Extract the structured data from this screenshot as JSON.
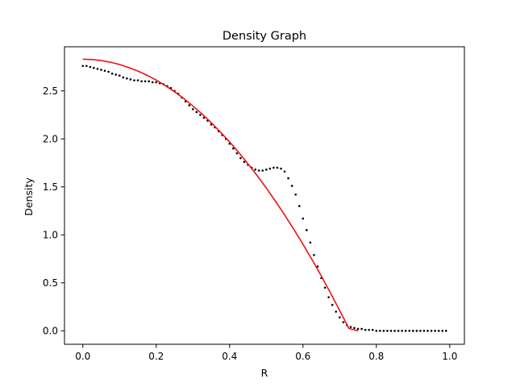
{
  "chart_data": {
    "type": "scatter",
    "title": "Density Graph",
    "xlabel": "R",
    "ylabel": "Density",
    "xlim": [
      -0.05,
      1.04
    ],
    "ylim": [
      -0.14,
      2.96
    ],
    "xticks": [
      0.0,
      0.2,
      0.4,
      0.6,
      0.8,
      1.0
    ],
    "xtick_labels": [
      "0.0",
      "0.2",
      "0.4",
      "0.6",
      "0.8",
      "1.0"
    ],
    "yticks": [
      0.0,
      0.5,
      1.0,
      1.5,
      2.0,
      2.5
    ],
    "ytick_labels": [
      "0.0",
      "0.5",
      "1.0",
      "1.5",
      "2.0",
      "2.5"
    ],
    "grid": false,
    "legend": "none",
    "series": [
      {
        "type": "scatter",
        "color": "#000000",
        "marker": "dot",
        "points": [
          [
            0.0,
            2.76
          ],
          [
            0.01,
            2.76
          ],
          [
            0.02,
            2.75
          ],
          [
            0.03,
            2.74
          ],
          [
            0.04,
            2.73
          ],
          [
            0.05,
            2.72
          ],
          [
            0.06,
            2.71
          ],
          [
            0.07,
            2.7
          ],
          [
            0.08,
            2.68
          ],
          [
            0.09,
            2.67
          ],
          [
            0.1,
            2.66
          ],
          [
            0.11,
            2.64
          ],
          [
            0.12,
            2.63
          ],
          [
            0.13,
            2.62
          ],
          [
            0.14,
            2.61
          ],
          [
            0.15,
            2.61
          ],
          [
            0.16,
            2.6
          ],
          [
            0.17,
            2.6
          ],
          [
            0.18,
            2.6
          ],
          [
            0.19,
            2.59
          ],
          [
            0.2,
            2.59
          ],
          [
            0.21,
            2.58
          ],
          [
            0.22,
            2.57
          ],
          [
            0.23,
            2.55
          ],
          [
            0.24,
            2.53
          ],
          [
            0.25,
            2.5
          ],
          [
            0.26,
            2.47
          ],
          [
            0.27,
            2.43
          ],
          [
            0.28,
            2.39
          ],
          [
            0.29,
            2.35
          ],
          [
            0.3,
            2.31
          ],
          [
            0.31,
            2.28
          ],
          [
            0.32,
            2.25
          ],
          [
            0.33,
            2.22
          ],
          [
            0.34,
            2.19
          ],
          [
            0.35,
            2.15
          ],
          [
            0.36,
            2.12
          ],
          [
            0.37,
            2.08
          ],
          [
            0.38,
            2.04
          ],
          [
            0.39,
            2.0
          ],
          [
            0.4,
            1.95
          ],
          [
            0.41,
            1.9
          ],
          [
            0.42,
            1.85
          ],
          [
            0.43,
            1.8
          ],
          [
            0.44,
            1.76
          ],
          [
            0.45,
            1.73
          ],
          [
            0.46,
            1.7
          ],
          [
            0.47,
            1.68
          ],
          [
            0.48,
            1.67
          ],
          [
            0.49,
            1.67
          ],
          [
            0.5,
            1.68
          ],
          [
            0.51,
            1.69
          ],
          [
            0.52,
            1.7
          ],
          [
            0.53,
            1.7
          ],
          [
            0.54,
            1.69
          ],
          [
            0.55,
            1.66
          ],
          [
            0.56,
            1.59
          ],
          [
            0.57,
            1.51
          ],
          [
            0.58,
            1.42
          ],
          [
            0.59,
            1.3
          ],
          [
            0.6,
            1.17
          ],
          [
            0.61,
            1.05
          ],
          [
            0.62,
            0.92
          ],
          [
            0.63,
            0.79
          ],
          [
            0.64,
            0.67
          ],
          [
            0.65,
            0.55
          ],
          [
            0.66,
            0.45
          ],
          [
            0.67,
            0.35
          ],
          [
            0.68,
            0.27
          ],
          [
            0.69,
            0.2
          ],
          [
            0.7,
            0.14
          ],
          [
            0.71,
            0.09
          ],
          [
            0.72,
            0.06
          ],
          [
            0.73,
            0.04
          ],
          [
            0.74,
            0.03
          ],
          [
            0.75,
            0.02
          ],
          [
            0.76,
            0.02
          ],
          [
            0.77,
            0.01
          ],
          [
            0.78,
            0.01
          ],
          [
            0.79,
            0.01
          ],
          [
            0.8,
            0.0
          ],
          [
            0.81,
            0.0
          ],
          [
            0.82,
            0.0
          ],
          [
            0.83,
            0.0
          ],
          [
            0.84,
            0.0
          ],
          [
            0.85,
            0.0
          ],
          [
            0.86,
            0.0
          ],
          [
            0.87,
            0.0
          ],
          [
            0.88,
            0.0
          ],
          [
            0.89,
            0.0
          ],
          [
            0.9,
            0.0
          ],
          [
            0.91,
            0.0
          ],
          [
            0.92,
            0.0
          ],
          [
            0.93,
            0.0
          ],
          [
            0.94,
            0.0
          ],
          [
            0.95,
            0.0
          ],
          [
            0.96,
            0.0
          ],
          [
            0.97,
            0.0
          ],
          [
            0.98,
            0.0
          ],
          [
            0.99,
            0.0
          ]
        ]
      },
      {
        "type": "line",
        "color": "#ee1111",
        "points": [
          [
            0.0,
            2.83
          ],
          [
            0.025,
            2.827
          ],
          [
            0.05,
            2.817
          ],
          [
            0.075,
            2.799
          ],
          [
            0.1,
            2.775
          ],
          [
            0.125,
            2.744
          ],
          [
            0.15,
            2.707
          ],
          [
            0.175,
            2.663
          ],
          [
            0.2,
            2.613
          ],
          [
            0.225,
            2.555
          ],
          [
            0.25,
            2.491
          ],
          [
            0.275,
            2.421
          ],
          [
            0.3,
            2.343
          ],
          [
            0.325,
            2.26
          ],
          [
            0.35,
            2.169
          ],
          [
            0.375,
            2.072
          ],
          [
            0.4,
            1.968
          ],
          [
            0.425,
            1.858
          ],
          [
            0.45,
            1.741
          ],
          [
            0.475,
            1.618
          ],
          [
            0.5,
            1.488
          ],
          [
            0.525,
            1.351
          ],
          [
            0.55,
            1.208
          ],
          [
            0.575,
            1.058
          ],
          [
            0.6,
            0.902
          ],
          [
            0.625,
            0.74
          ],
          [
            0.65,
            0.571
          ],
          [
            0.675,
            0.395
          ],
          [
            0.7,
            0.213
          ],
          [
            0.725,
            0.025
          ],
          [
            0.75,
            0.0
          ]
        ]
      }
    ]
  }
}
